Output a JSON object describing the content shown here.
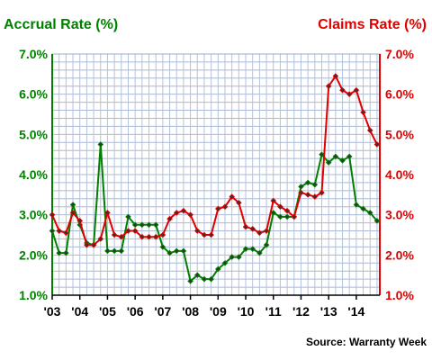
{
  "chart_data": {
    "type": "line",
    "left_axis_title": "Accrual Rate (%)",
    "right_axis_title": "Claims Rate (%)",
    "source": "Source: Warranty Week",
    "x_tick_labels": [
      "'03",
      "'04",
      "'05",
      "'06",
      "'07",
      "'08",
      "'09",
      "'10",
      "'11",
      "'12",
      "'13",
      "'14"
    ],
    "y_tick_labels": [
      "1.0%",
      "2.0%",
      "3.0%",
      "4.0%",
      "5.0%",
      "6.0%",
      "7.0%"
    ],
    "ylim": [
      1.0,
      7.0
    ],
    "xlim": [
      2003.0,
      2014.85
    ],
    "grid": true,
    "colors": {
      "accrual": "#008000",
      "claims": "#e00000"
    },
    "series": [
      {
        "name": "Accrual Rate (%)",
        "axis": "left",
        "x": [
          2003.0,
          2003.25,
          2003.5,
          2003.75,
          2004.0,
          2004.25,
          2004.5,
          2004.75,
          2005.0,
          2005.25,
          2005.5,
          2005.75,
          2006.0,
          2006.25,
          2006.5,
          2006.75,
          2007.0,
          2007.25,
          2007.5,
          2007.75,
          2008.0,
          2008.25,
          2008.5,
          2008.75,
          2009.0,
          2009.25,
          2009.5,
          2009.75,
          2010.0,
          2010.25,
          2010.5,
          2010.75,
          2011.0,
          2011.25,
          2011.5,
          2011.75,
          2012.0,
          2012.25,
          2012.5,
          2012.75,
          2013.0,
          2013.25,
          2013.5,
          2013.75,
          2014.0,
          2014.25,
          2014.5,
          2014.75
        ],
        "values": [
          2.6,
          2.05,
          2.05,
          3.25,
          2.75,
          2.3,
          2.25,
          4.75,
          2.1,
          2.1,
          2.1,
          2.95,
          2.75,
          2.75,
          2.75,
          2.75,
          2.2,
          2.05,
          2.1,
          2.1,
          1.35,
          1.5,
          1.4,
          1.4,
          1.65,
          1.8,
          1.95,
          1.95,
          2.15,
          2.15,
          2.05,
          2.25,
          3.05,
          2.95,
          2.95,
          2.95,
          3.7,
          3.8,
          3.75,
          4.5,
          4.3,
          4.45,
          4.35,
          4.45,
          3.25,
          3.15,
          3.05,
          2.85
        ]
      },
      {
        "name": "Claims Rate (%)",
        "axis": "right",
        "x": [
          2003.0,
          2003.25,
          2003.5,
          2003.75,
          2004.0,
          2004.25,
          2004.5,
          2004.75,
          2005.0,
          2005.25,
          2005.5,
          2005.75,
          2006.0,
          2006.25,
          2006.5,
          2006.75,
          2007.0,
          2007.25,
          2007.5,
          2007.75,
          2008.0,
          2008.25,
          2008.5,
          2008.75,
          2009.0,
          2009.25,
          2009.5,
          2009.75,
          2010.0,
          2010.25,
          2010.5,
          2010.75,
          2011.0,
          2011.25,
          2011.5,
          2011.75,
          2012.0,
          2012.25,
          2012.5,
          2012.75,
          2013.0,
          2013.25,
          2013.5,
          2013.75,
          2014.0,
          2014.25,
          2014.5,
          2014.75
        ],
        "values": [
          3.0,
          2.6,
          2.55,
          3.05,
          2.85,
          2.25,
          2.25,
          2.4,
          3.05,
          2.5,
          2.45,
          2.6,
          2.6,
          2.45,
          2.45,
          2.45,
          2.5,
          2.9,
          3.05,
          3.1,
          3.0,
          2.6,
          2.5,
          2.5,
          3.15,
          3.2,
          3.45,
          3.3,
          2.7,
          2.65,
          2.55,
          2.6,
          3.35,
          3.2,
          3.1,
          2.95,
          3.55,
          3.5,
          3.45,
          3.55,
          6.2,
          6.45,
          6.1,
          6.0,
          6.1,
          5.55,
          5.1,
          4.75
        ]
      }
    ]
  }
}
